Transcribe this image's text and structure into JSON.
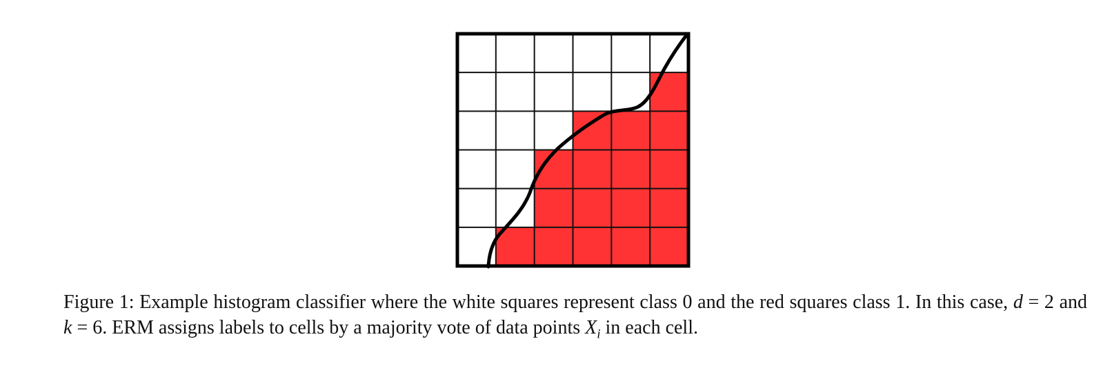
{
  "figure": {
    "grid_size": 6,
    "colors": {
      "class0": "#ffffff",
      "class1": "#ff3333",
      "grid_line": "#111111",
      "boundary": "#000000"
    },
    "cells": [
      [
        0,
        0,
        0,
        0,
        0,
        0
      ],
      [
        0,
        0,
        0,
        0,
        0,
        1
      ],
      [
        0,
        0,
        0,
        1,
        1,
        1
      ],
      [
        0,
        0,
        1,
        1,
        1,
        1
      ],
      [
        0,
        0,
        1,
        1,
        1,
        1
      ],
      [
        0,
        1,
        1,
        1,
        1,
        1
      ]
    ]
  },
  "caption": {
    "label": "Figure 1:",
    "text1": " Example histogram classifier where the white squares represent class 0 and the red squares class 1. In this case, ",
    "d_var": "d",
    "eq1": " = 2 and ",
    "k_var": "k",
    "eq2": " = 6. ERM assigns labels to cells by a majority vote of data points ",
    "X_var": "X",
    "X_sub": "i",
    "text2": " in each cell."
  }
}
